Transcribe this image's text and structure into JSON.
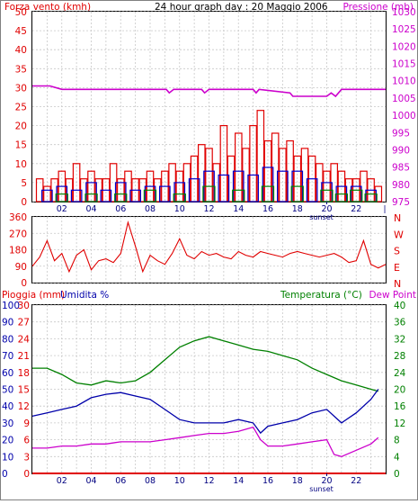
{
  "header": {
    "left_label": "Forza vento (kmh)",
    "center_title": "24 hour graph day : 20 Maggio 2006",
    "right_label": "Pressione (mb)"
  },
  "colors": {
    "wind_gust": "#e00000",
    "wind_avg_blue": "#0000cc",
    "wind_green": "#008000",
    "pressure": "#cc00cc",
    "direction": "#e00000",
    "temperature": "#008000",
    "humidity": "#0000aa",
    "dew_point": "#cc00cc",
    "rain": "#e00000",
    "grid": "#c8c8c8",
    "sunset_marker": "#000080"
  },
  "x_ticks": [
    "02",
    "04",
    "06",
    "08",
    "10",
    "12",
    "14",
    "16",
    "18",
    "20",
    "22"
  ],
  "sunset_label": "sunset",
  "sunset_hour": 20,
  "chart_data": [
    {
      "type": "bar",
      "panel": "wind-pressure",
      "xlabel": "",
      "ylabel": "Forza vento (kmh)",
      "y2label": "Pressione (mb)",
      "xlim": [
        0,
        24
      ],
      "ylim": [
        0,
        50
      ],
      "y2lim": [
        975,
        1030
      ],
      "y_ticks": [
        0,
        5,
        10,
        15,
        20,
        25,
        30,
        35,
        40,
        45,
        50
      ],
      "y2_ticks": [
        975,
        980,
        985,
        990,
        995,
        1000,
        1005,
        1010,
        1015,
        1020,
        1025,
        1030
      ],
      "grid": true,
      "series": [
        {
          "name": "Pressione (mb)",
          "type": "line",
          "axis": "right",
          "x": [
            0,
            1.2,
            2,
            4,
            6,
            8,
            9.1,
            9.3,
            9.6,
            11.5,
            11.7,
            12,
            15,
            15.2,
            15.4,
            17.5,
            17.7,
            20,
            20.3,
            20.6,
            21,
            24
          ],
          "values": [
            1008.5,
            1008.5,
            1007.5,
            1007.5,
            1007.5,
            1007.5,
            1007.5,
            1006.5,
            1007.5,
            1007.5,
            1006.5,
            1007.5,
            1007.5,
            1006.5,
            1007.5,
            1006.5,
            1005.5,
            1005.5,
            1006.5,
            1005.5,
            1007.5,
            1007.5
          ]
        },
        {
          "name": "",
          "type": "bar",
          "axis": "left",
          "x": [
            0.5,
            1.0,
            1.5,
            2.0,
            2.5,
            3.0,
            3.5,
            4.0,
            4.5,
            5.0,
            5.5,
            6.0,
            6.5,
            7.0,
            7.5,
            8.0,
            8.5,
            9.0,
            9.5,
            10.0,
            10.5,
            11.0,
            11.5,
            12.0,
            12.5,
            13.0,
            13.5,
            14.0,
            14.5,
            15.0,
            15.5,
            16.0,
            16.5,
            17.0,
            17.5,
            18.0,
            18.5,
            19.0,
            19.5,
            20.0,
            20.5,
            21.0,
            21.5,
            22.0,
            22.5,
            23.0,
            23.5
          ],
          "values": [
            6,
            4,
            6,
            8,
            6,
            10,
            6,
            8,
            6,
            6,
            10,
            6,
            8,
            6,
            6,
            8,
            6,
            8,
            10,
            8,
            10,
            12,
            15,
            14,
            10,
            20,
            12,
            18,
            14,
            20,
            24,
            16,
            18,
            14,
            16,
            12,
            14,
            12,
            10,
            8,
            10,
            8,
            6,
            6,
            8,
            6,
            4
          ]
        },
        {
          "name": "",
          "type": "bar",
          "axis": "left",
          "x": [
            1,
            2,
            3,
            4,
            5,
            6,
            7,
            8,
            9,
            10,
            11,
            12,
            13,
            14,
            15,
            16,
            17,
            18,
            19,
            20,
            21,
            22,
            23
          ],
          "values": [
            3,
            4,
            3,
            5,
            3,
            5,
            3,
            4,
            4,
            5,
            6,
            8,
            7,
            8,
            7,
            9,
            8,
            8,
            6,
            5,
            4,
            4,
            3
          ]
        },
        {
          "name": "",
          "type": "bar",
          "axis": "left",
          "x": [
            2,
            4,
            6,
            8,
            10,
            12,
            14,
            16,
            18,
            20,
            21,
            22,
            23
          ],
          "values": [
            2,
            2,
            2,
            3,
            2,
            4,
            3,
            4,
            4,
            3,
            2,
            3,
            2
          ]
        }
      ]
    },
    {
      "type": "line",
      "panel": "wind-direction",
      "xlabel": "",
      "ylabel": "",
      "xlim": [
        0,
        24
      ],
      "ylim": [
        0,
        360
      ],
      "y_ticks": [
        0,
        90,
        180,
        270,
        360
      ],
      "right_labels": [
        "N",
        "W",
        "S",
        "E",
        "N"
      ],
      "grid": true,
      "series": [
        {
          "name": "",
          "x": [
            0,
            0.5,
            1,
            1.5,
            2,
            2.5,
            3,
            3.5,
            4,
            4.5,
            5,
            5.5,
            6,
            6.5,
            7,
            7.5,
            8,
            8.5,
            9,
            9.5,
            10,
            10.5,
            11,
            11.5,
            12,
            12.5,
            13,
            13.5,
            14,
            14.5,
            15,
            15.5,
            16,
            16.5,
            17,
            17.5,
            18,
            18.5,
            19,
            19.5,
            20,
            20.5,
            21,
            21.5,
            22,
            22.5,
            23,
            23.5,
            24
          ],
          "values": [
            90,
            140,
            230,
            120,
            160,
            60,
            150,
            180,
            70,
            120,
            130,
            110,
            160,
            330,
            200,
            60,
            150,
            120,
            100,
            160,
            240,
            150,
            130,
            170,
            150,
            160,
            140,
            130,
            170,
            150,
            140,
            170,
            160,
            150,
            140,
            160,
            170,
            160,
            150,
            140,
            150,
            160,
            140,
            110,
            120,
            230,
            100,
            80,
            100
          ]
        }
      ]
    },
    {
      "type": "line",
      "panel": "humidity-temperature",
      "xlabel": "",
      "ylabel": "Pioggia (mm)  Umidita %",
      "y2label": "Temperatura (°C) Dew Point",
      "xlim": [
        0,
        24
      ],
      "ylim_humidity": [
        0,
        100
      ],
      "ylim_rain": [
        0,
        30
      ],
      "y2lim": [
        0,
        40
      ],
      "humidity_ticks": [
        0,
        10,
        20,
        30,
        40,
        50,
        60,
        70,
        80,
        90,
        100
      ],
      "rain_ticks": [
        0,
        3,
        6,
        9,
        12,
        15,
        18,
        21,
        24,
        27,
        30
      ],
      "temp_ticks": [
        0,
        4,
        8,
        12,
        16,
        20,
        24,
        28,
        32,
        36,
        40
      ],
      "grid": true,
      "series": [
        {
          "name": "Temperatura (°C)",
          "axis": "right",
          "x": [
            0,
            1,
            2,
            3,
            4,
            5,
            6,
            7,
            8,
            9,
            10,
            11,
            12,
            13,
            14,
            15,
            16,
            17,
            18,
            19,
            20,
            21,
            22,
            23,
            23.5
          ],
          "values": [
            25,
            25,
            23.5,
            21.5,
            21,
            22,
            21.5,
            22,
            24,
            27,
            30,
            31.5,
            32.5,
            31.5,
            30.5,
            29.5,
            29,
            28,
            27,
            25,
            23.5,
            22,
            21,
            20,
            19.5
          ]
        },
        {
          "name": "Umidita %",
          "axis": "left",
          "x": [
            0,
            1,
            2,
            3,
            4,
            5,
            6,
            7,
            8,
            9,
            10,
            11,
            12,
            13,
            14,
            15,
            15.5,
            16,
            17,
            18,
            19,
            20,
            21,
            22,
            23,
            23.5
          ],
          "values": [
            34,
            36,
            38,
            40,
            45,
            47,
            48,
            46,
            44,
            38,
            32,
            30,
            30,
            30,
            32,
            30,
            24,
            28,
            30,
            32,
            36,
            38,
            30,
            36,
            44,
            50
          ]
        },
        {
          "name": "Dew Point",
          "axis": "right",
          "x": [
            0,
            1,
            2,
            3,
            4,
            5,
            6,
            7,
            8,
            9,
            10,
            11,
            12,
            13,
            14,
            15,
            15.5,
            16,
            17,
            18,
            19,
            20,
            20.5,
            21,
            22,
            23,
            23.5
          ],
          "values": [
            6,
            6,
            6.5,
            6.5,
            7,
            7,
            7.5,
            7.5,
            7.5,
            8,
            8.5,
            9,
            9.5,
            9.5,
            10,
            11,
            8,
            6.5,
            6.5,
            7,
            7.5,
            8,
            4.5,
            4,
            5.5,
            7,
            8.5
          ]
        },
        {
          "name": "Pioggia (mm)",
          "axis": "left-rain",
          "x": [
            0,
            24
          ],
          "values": [
            0,
            0
          ]
        }
      ]
    }
  ]
}
